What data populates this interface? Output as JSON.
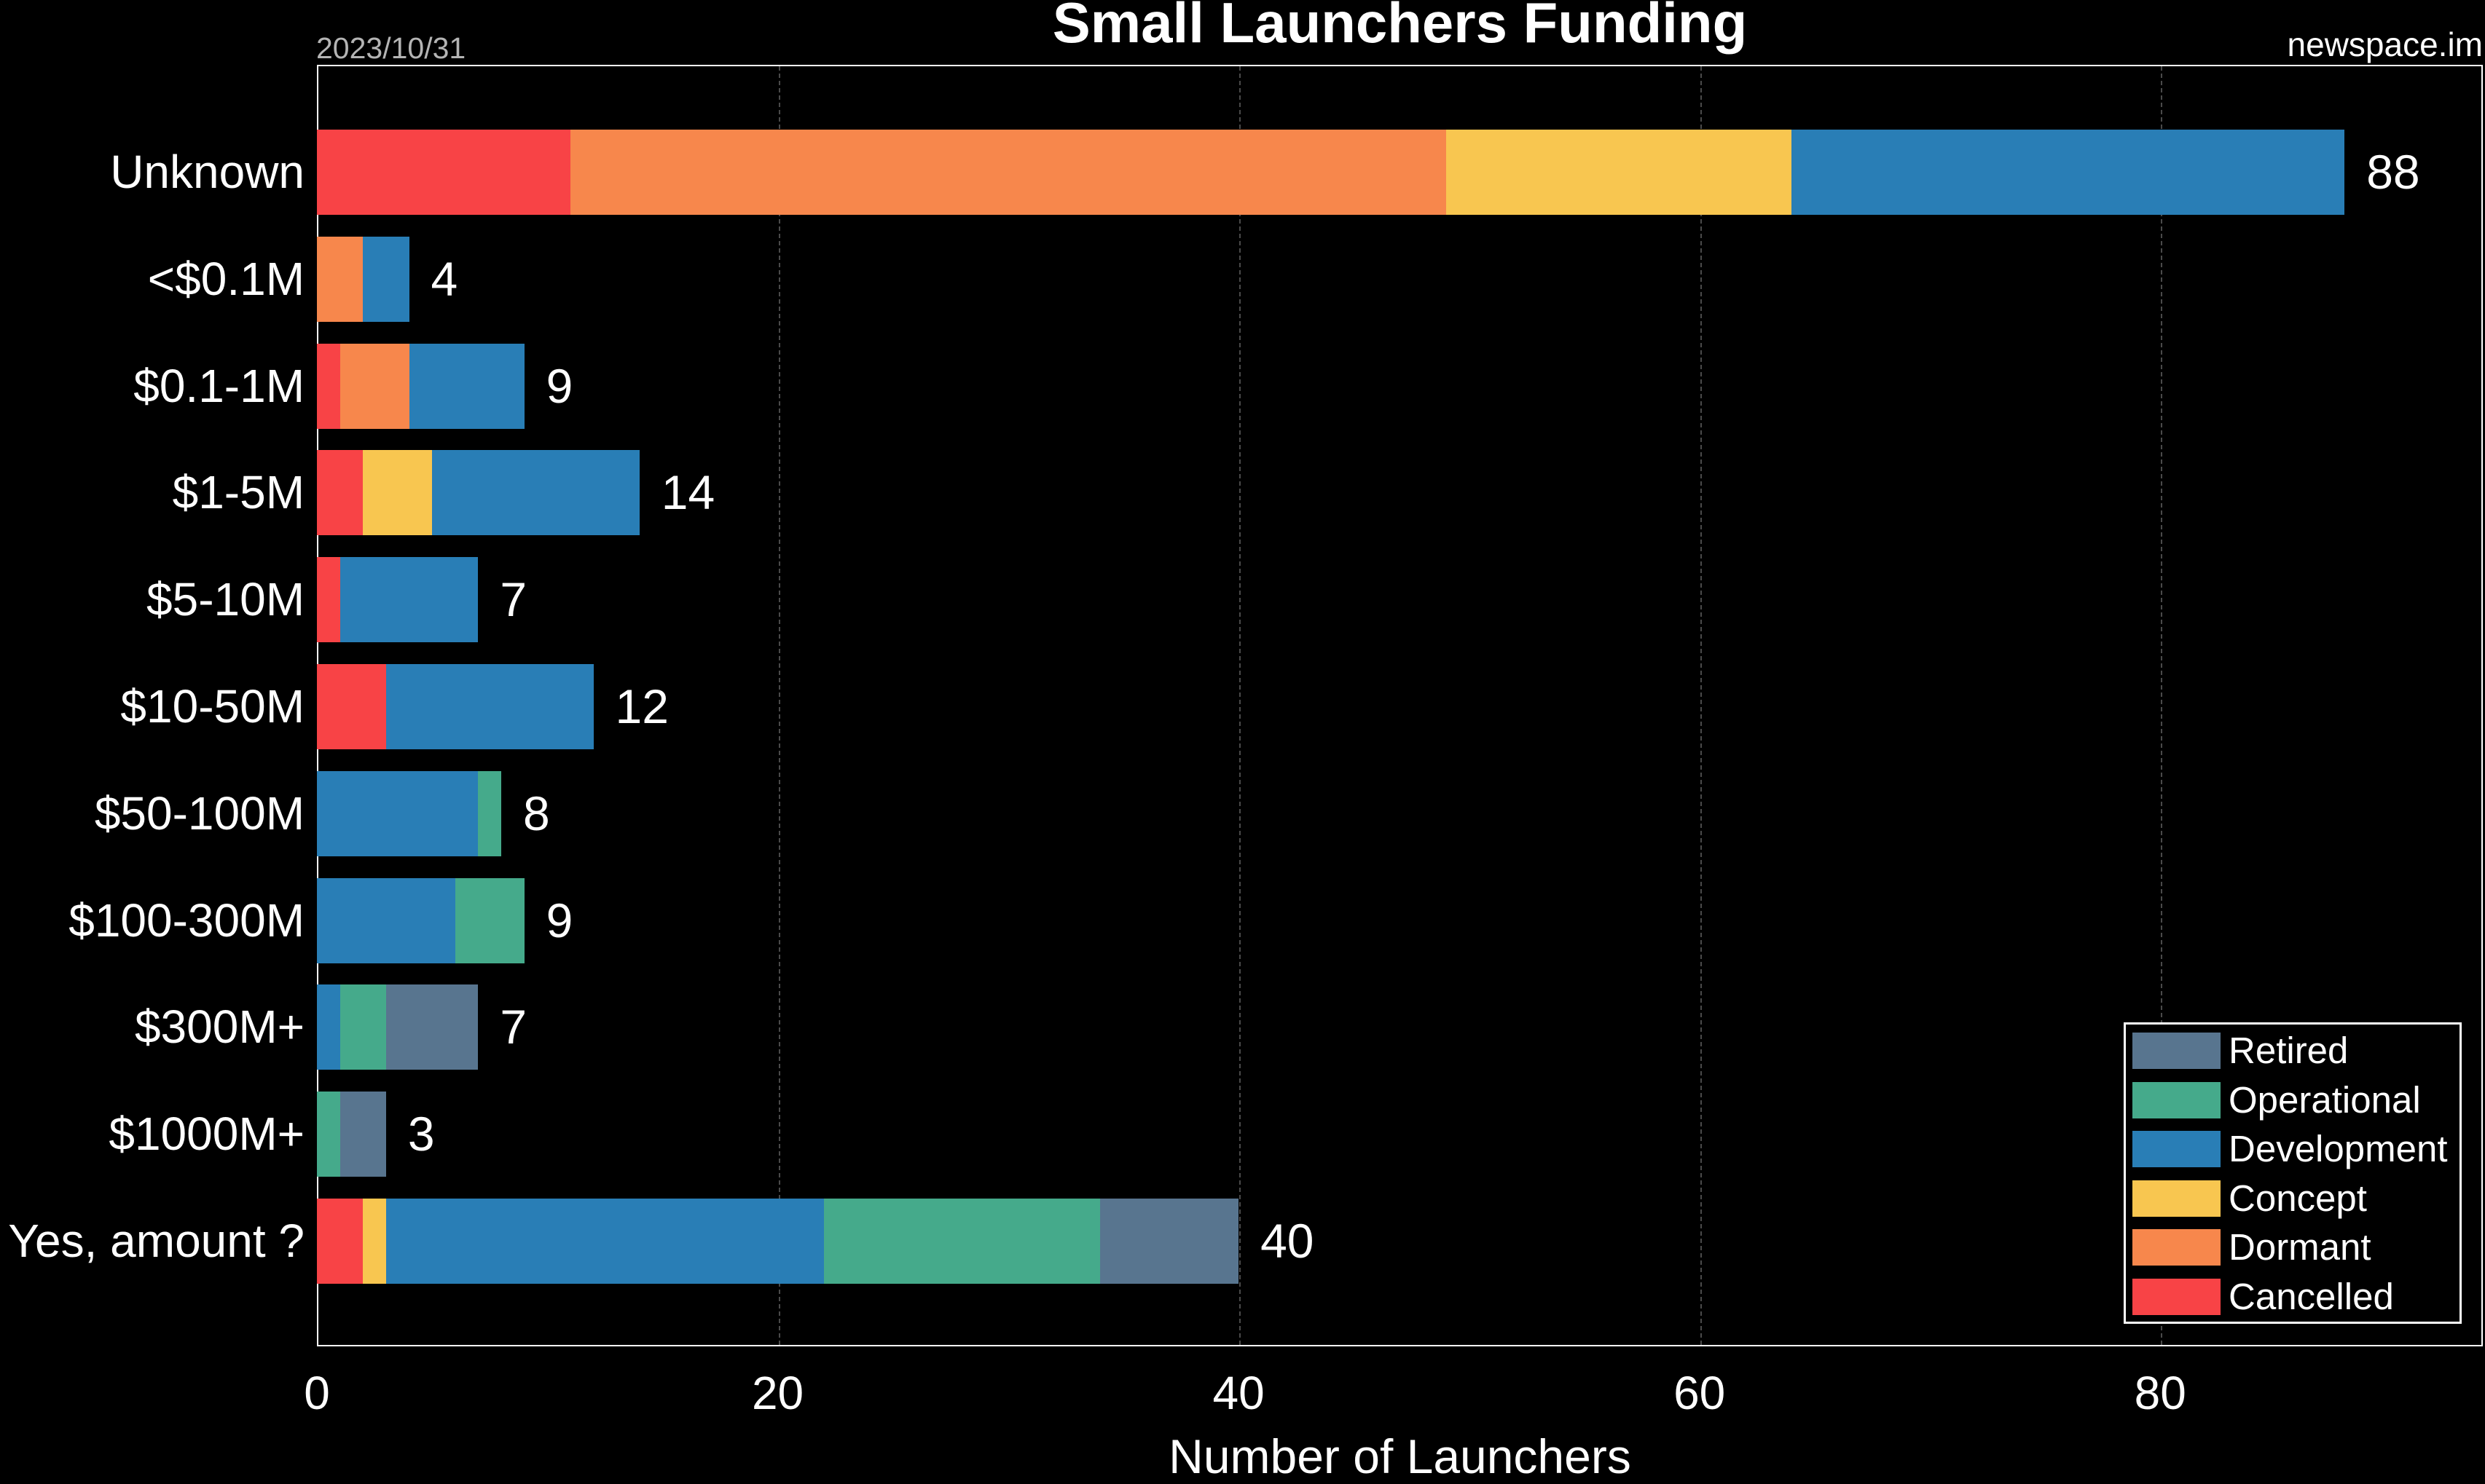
{
  "header": {
    "title": "Small Launchers Funding",
    "date": "2023/10/31",
    "source": "newspace.im"
  },
  "colors": {
    "background": "#000000",
    "Retired": "#58758f",
    "Operational": "#45aa8b",
    "Development": "#297eb6",
    "Concept": "#f8c650",
    "Dormant": "#f7874c",
    "Cancelled": "#f84346"
  },
  "legend": {
    "items": [
      {
        "label": "Retired",
        "color": "#58758f"
      },
      {
        "label": "Operational",
        "color": "#45aa8b"
      },
      {
        "label": "Development",
        "color": "#297eb6"
      },
      {
        "label": "Concept",
        "color": "#f8c650"
      },
      {
        "label": "Dormant",
        "color": "#f7874c"
      },
      {
        "label": "Cancelled",
        "color": "#f84346"
      }
    ]
  },
  "x_axis": {
    "label": "Number of Launchers",
    "ticks": [
      "0",
      "20",
      "40",
      "60",
      "80"
    ]
  },
  "chart_data": {
    "type": "bar",
    "orientation": "horizontal",
    "stacked": true,
    "title": "Small Launchers Funding",
    "subtitle_left": "2023/10/31",
    "subtitle_right": "newspace.im",
    "xlabel": "Number of Launchers",
    "ylabel": "",
    "xlim": [
      0,
      94
    ],
    "xticks": [
      0,
      20,
      40,
      60,
      80
    ],
    "grid": "vertical dashed",
    "legend_position": "lower right",
    "categories": [
      "Unknown",
      "<$0.1M",
      "$0.1-1M",
      "$1-5M",
      "$5-10M",
      "$10-50M",
      "$50-100M",
      "$100-300M",
      "$300M+",
      "$1000M+",
      "Yes, amount ?"
    ],
    "series": [
      {
        "name": "Cancelled",
        "color": "#f84346",
        "values": [
          11,
          0,
          1,
          2,
          1,
          3,
          0,
          0,
          0,
          0,
          2
        ]
      },
      {
        "name": "Dormant",
        "color": "#f7874c",
        "values": [
          38,
          2,
          3,
          0,
          0,
          0,
          0,
          0,
          0,
          0,
          0
        ]
      },
      {
        "name": "Concept",
        "color": "#f8c650",
        "values": [
          15,
          0,
          0,
          3,
          0,
          0,
          0,
          0,
          0,
          0,
          1
        ]
      },
      {
        "name": "Development",
        "color": "#297eb6",
        "values": [
          24,
          2,
          5,
          9,
          6,
          9,
          7,
          6,
          1,
          0,
          19
        ]
      },
      {
        "name": "Operational",
        "color": "#45aa8b",
        "values": [
          0,
          0,
          0,
          0,
          0,
          0,
          1,
          3,
          2,
          1,
          12
        ]
      },
      {
        "name": "Retired",
        "color": "#58758f",
        "values": [
          0,
          0,
          0,
          0,
          0,
          0,
          0,
          0,
          4,
          2,
          6
        ]
      }
    ],
    "totals": [
      88,
      4,
      9,
      14,
      7,
      12,
      8,
      9,
      7,
      3,
      40
    ]
  }
}
